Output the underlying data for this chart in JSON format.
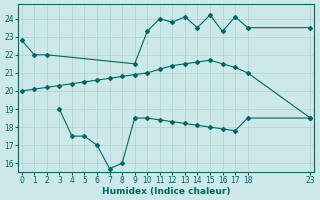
{
  "xlabel": "Humidex (Indice chaleur)",
  "bg_color": "#cde8e8",
  "grid_color": "#b0d0d0",
  "line_color": "#006666",
  "line1": {
    "x": [
      0,
      1,
      2,
      9,
      10,
      11,
      12,
      13,
      14,
      15,
      16,
      17,
      18,
      23
    ],
    "y": [
      22.8,
      22.0,
      22.0,
      21.5,
      23.3,
      24.0,
      23.8,
      24.1,
      23.5,
      24.2,
      23.3,
      24.1,
      23.5,
      23.5
    ]
  },
  "line2": {
    "x": [
      0,
      1,
      2,
      3,
      4,
      5,
      6,
      7,
      8,
      9,
      10,
      11,
      12,
      13,
      14,
      15,
      16,
      17,
      18,
      23
    ],
    "y": [
      20.0,
      20.1,
      20.2,
      20.3,
      20.4,
      20.5,
      20.6,
      20.7,
      20.8,
      20.9,
      21.0,
      21.2,
      21.4,
      21.5,
      21.6,
      21.7,
      21.5,
      21.3,
      21.0,
      18.5
    ]
  },
  "line3": {
    "x": [
      3,
      4,
      5,
      6,
      7,
      8,
      9,
      10,
      11,
      12,
      13,
      14,
      15,
      16,
      17,
      18,
      23
    ],
    "y": [
      19.0,
      17.5,
      17.5,
      17.0,
      15.7,
      16.0,
      18.5,
      18.5,
      18.4,
      18.3,
      18.2,
      18.1,
      18.0,
      17.9,
      17.8,
      18.5,
      18.5
    ]
  },
  "ylim": [
    15.5,
    24.8
  ],
  "xlim": [
    -0.3,
    23.3
  ],
  "yticks": [
    16,
    17,
    18,
    19,
    20,
    21,
    22,
    23,
    24
  ],
  "xticks": [
    0,
    1,
    2,
    3,
    4,
    5,
    6,
    7,
    8,
    9,
    10,
    11,
    12,
    13,
    14,
    15,
    16,
    17,
    18,
    23
  ]
}
